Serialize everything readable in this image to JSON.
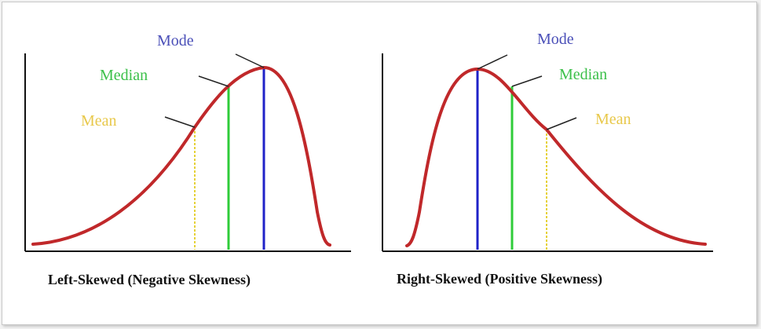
{
  "colors": {
    "curve": "#c0282a",
    "mode": "#1f22c8",
    "median": "#2fcc3a",
    "mean": "#e6d23a",
    "mode_text": "#4a4fb8",
    "median_text": "#3cc04a",
    "mean_text": "#e8c84a",
    "axis": "#111111",
    "leader": "#222222"
  },
  "left_panel": {
    "caption": "Left-Skewed (Negative Skewness)",
    "labels": {
      "mode": "Mode",
      "median": "Median",
      "mean": "Mean"
    }
  },
  "right_panel": {
    "caption": "Right-Skewed (Positive Skewness)",
    "labels": {
      "mode": "Mode",
      "median": "Median",
      "mean": "Mean"
    }
  }
}
